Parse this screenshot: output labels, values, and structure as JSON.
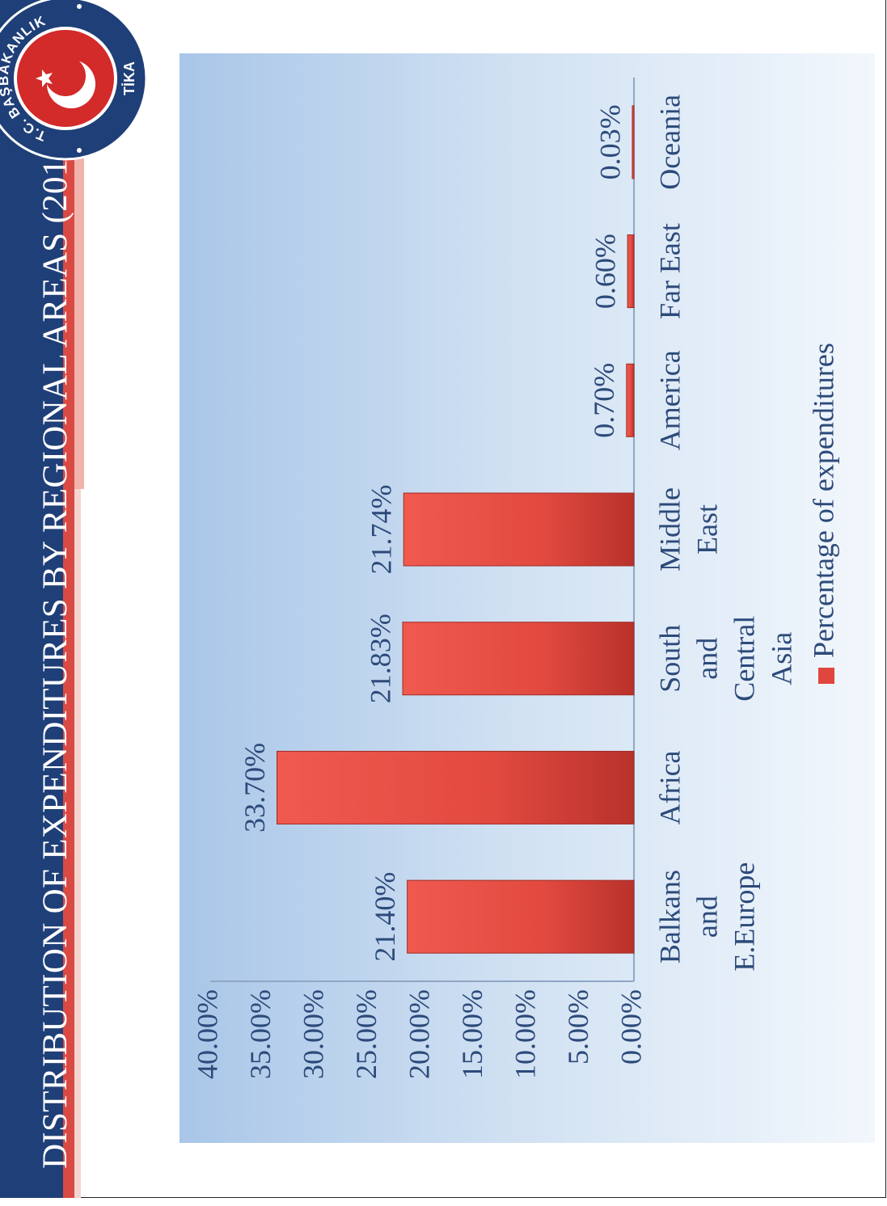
{
  "slide": {
    "title": "DISTRIBUTION OF EXPENDITURES BY REGIONAL AREAS (2013)",
    "logo": {
      "top_text": "T.C. BAŞBAKANLIK",
      "side_text": "TİKA",
      "colors": {
        "ring": "#1f3f78",
        "disc": "#d32a2a",
        "emblem": "#ffffff"
      }
    },
    "colors": {
      "title_band": "#1f3f78",
      "accent_red": "#d94a44",
      "accent_pink": "#f2b3ad"
    }
  },
  "chart_data": {
    "type": "bar",
    "orientation": "rotated 90° counter-clockwise (page shown sideways)",
    "categories": [
      [
        "Balkans",
        "and",
        "E.Europe"
      ],
      [
        "Africa"
      ],
      [
        "South",
        "and",
        "Central",
        "Asia"
      ],
      [
        "Middle",
        "East"
      ],
      [
        "America"
      ],
      [
        "Far East"
      ],
      [
        "Oceania"
      ]
    ],
    "series": [
      {
        "name": "Percentage of expenditures",
        "color": "#e0463e",
        "values": [
          21.4,
          33.7,
          21.83,
          21.74,
          0.7,
          0.6,
          0.03
        ]
      }
    ],
    "data_labels": [
      "21.40%",
      "33.70%",
      "21.83%",
      "21.74%",
      "0.70%",
      "0.60%",
      "0.03%"
    ],
    "y_ticks": [
      "0.00%",
      "5.00%",
      "10.00%",
      "15.00%",
      "20.00%",
      "25.00%",
      "30.00%",
      "35.00%",
      "40.00%"
    ],
    "ylim": [
      0,
      40
    ],
    "grid": false,
    "legend": "bottom",
    "background": "gradient light blue"
  }
}
